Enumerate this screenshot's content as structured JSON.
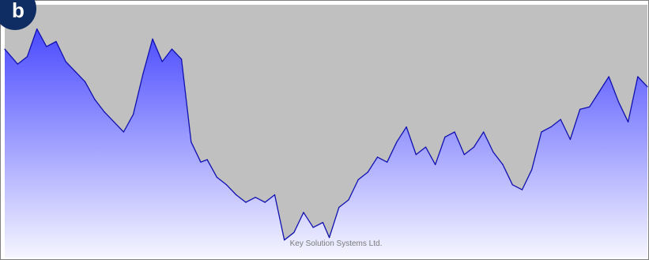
{
  "panel": {
    "label": "b",
    "watermark": "Key Solution Systems Ltd."
  },
  "colors": {
    "plot_background": "#c0c0c0",
    "frame_outer": "#808080",
    "frame_inner": "#ffffff",
    "line": "#1010b0",
    "fill_top": "#4a4aff",
    "fill_bottom": "#f5f5ff",
    "badge": "#0f2d63"
  },
  "chart_data": {
    "type": "area",
    "title": "",
    "xlabel": "",
    "ylabel": "",
    "grid": false,
    "legend": "none",
    "xlim": [
      0,
      100
    ],
    "ylim": [
      0,
      100
    ],
    "series": [
      {
        "x": [
          0,
          2,
          3.5,
          5,
          6.5,
          8,
          9.5,
          11,
          12.5,
          14,
          15.5,
          17,
          18.5,
          20,
          21.5,
          23,
          24.5,
          26,
          27.5,
          29,
          30.5,
          31.5,
          33,
          34.5,
          36,
          37.5,
          39,
          40.5,
          42,
          43.5,
          45,
          46.5,
          48,
          49.5,
          50.5,
          52,
          53.5,
          55,
          56.5,
          58,
          59.5,
          61,
          62.5,
          64,
          65.5,
          67,
          68.5,
          70,
          71.5,
          73,
          74.5,
          76,
          77.5,
          79,
          80.5,
          82,
          83.5,
          85,
          86.5,
          88,
          89.5,
          91,
          92.5,
          94,
          95.5,
          97,
          98.5,
          100
        ],
        "values": [
          83,
          77,
          80,
          91,
          84,
          86,
          78,
          74,
          70,
          63,
          58,
          54,
          50,
          57,
          73,
          87,
          78,
          83,
          79,
          46,
          38,
          39,
          32,
          29,
          25,
          22,
          24,
          22,
          25,
          7,
          10,
          18,
          12,
          14,
          8,
          20,
          23,
          31,
          34,
          40,
          38,
          46,
          52,
          41,
          44,
          37,
          48,
          50,
          41,
          44,
          50,
          42,
          37,
          29,
          27,
          35,
          50,
          52,
          55,
          47,
          59,
          60,
          66,
          72,
          62,
          54,
          72,
          68
        ]
      }
    ]
  }
}
